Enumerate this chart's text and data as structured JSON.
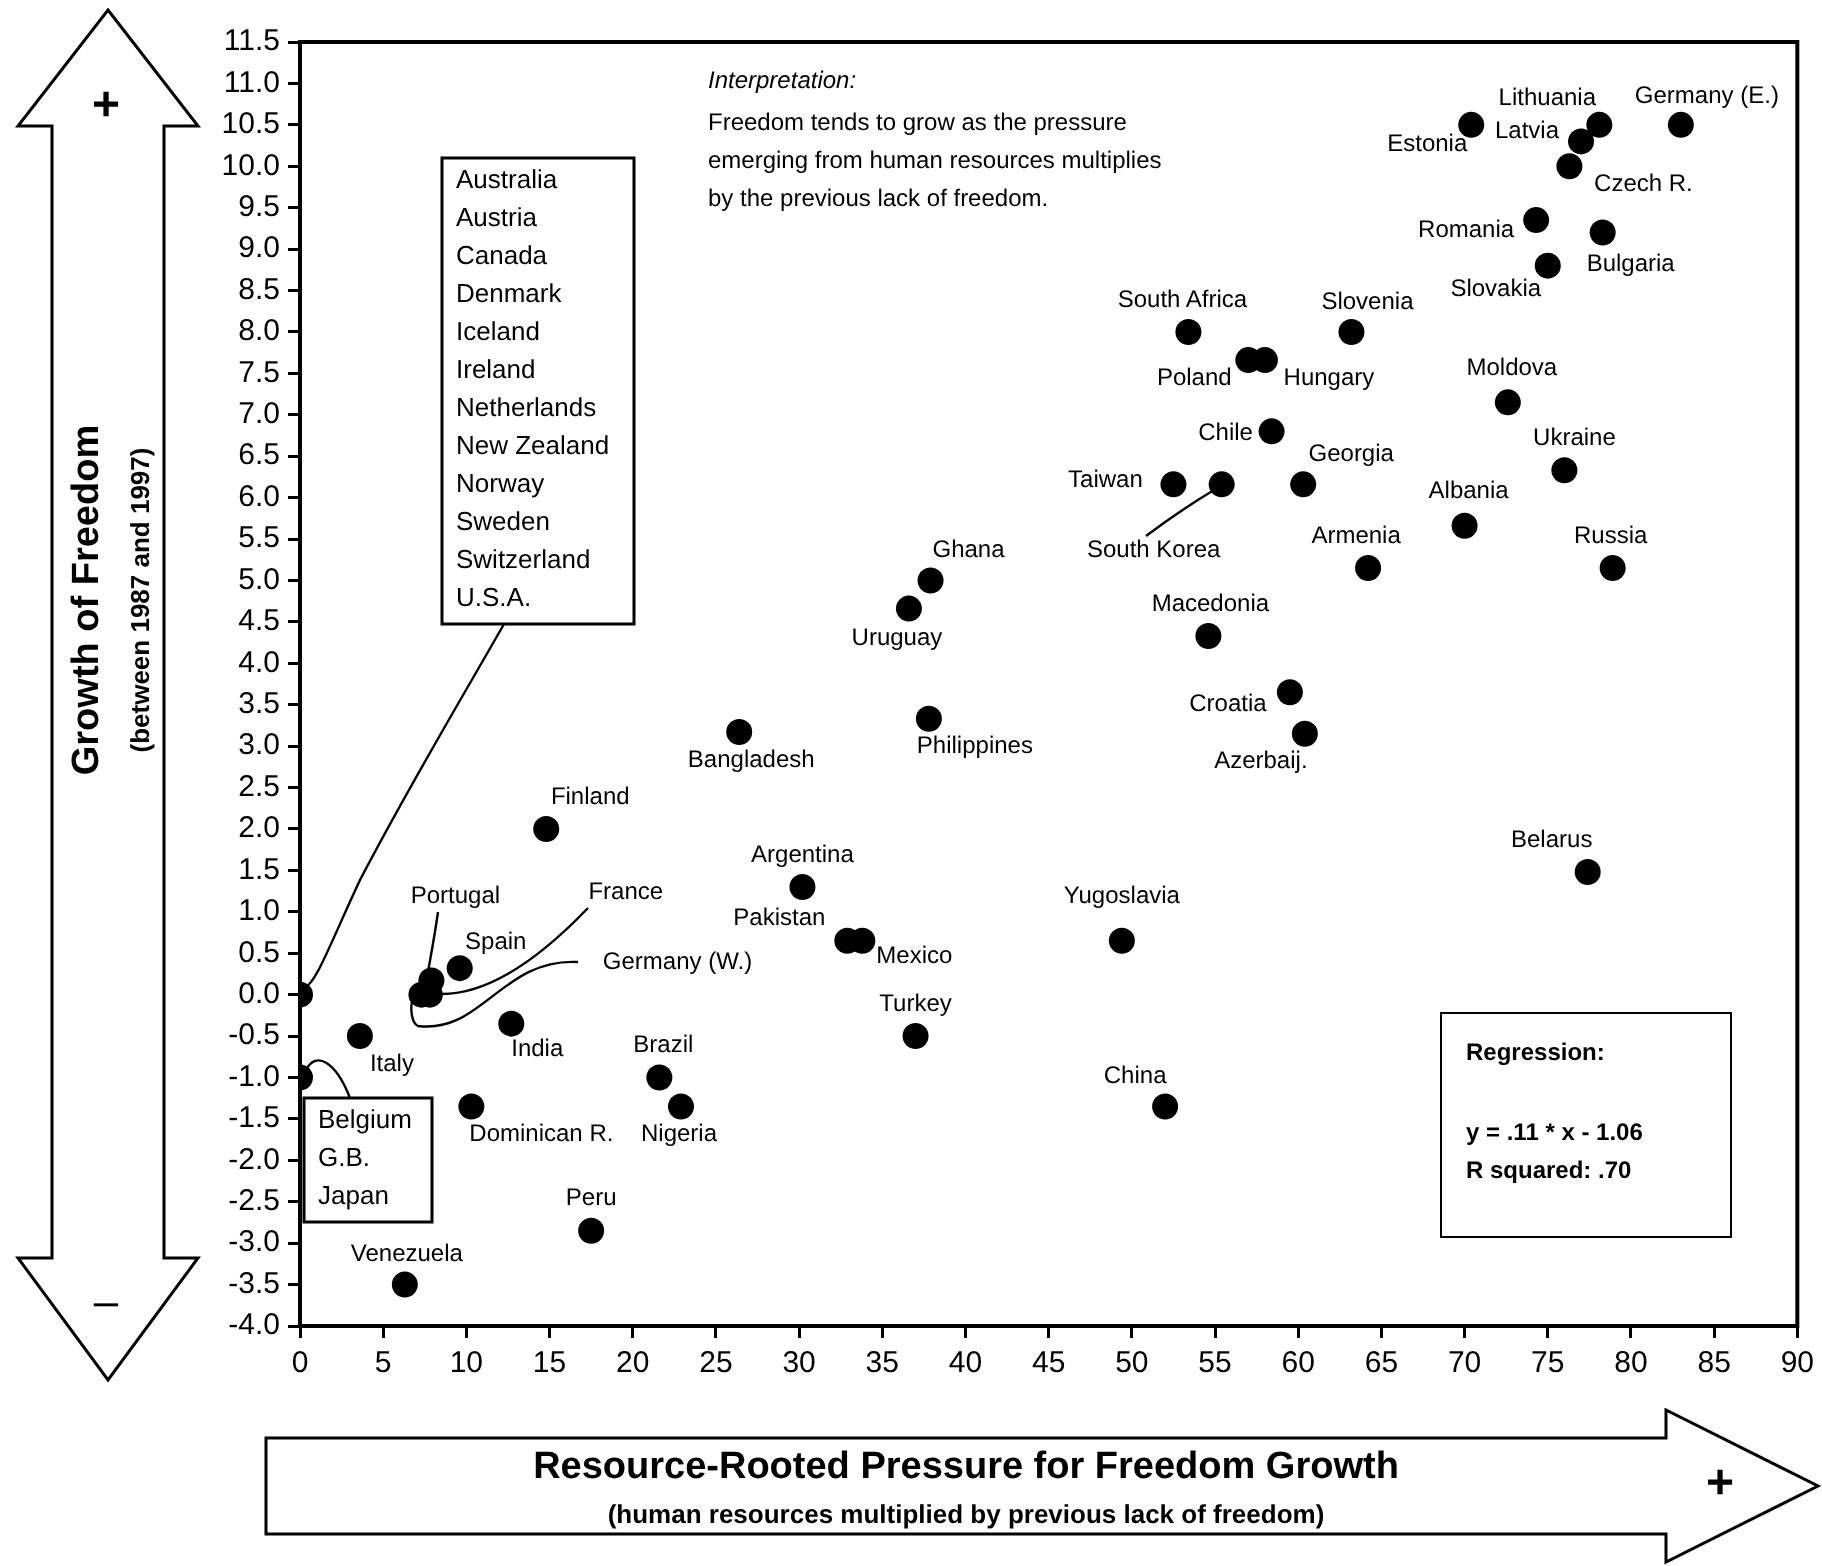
{
  "chart_data": {
    "type": "scatter",
    "xlabel": "Resource-Rooted Pressure for Freedom Growth",
    "ylabel": "Growth of Freedom",
    "marker": "circle",
    "legend": false,
    "xlim": [
      0,
      90
    ],
    "xticks": [
      0,
      5,
      10,
      15,
      20,
      25,
      30,
      35,
      40,
      45,
      50,
      55,
      60,
      65,
      70,
      75,
      80,
      85,
      90
    ],
    "ylim": [
      -4,
      11.5
    ],
    "yticks": [
      {
        "value": -4,
        "label": "-4.0"
      },
      -3.5,
      {
        "value": -3,
        "label": "-3.0"
      },
      -2.5,
      {
        "value": -2,
        "label": "-2.0"
      },
      -1.5,
      {
        "value": -1,
        "label": "-1.0"
      },
      -0.5,
      {
        "value": 0,
        "label": "0.0"
      },
      0.5,
      {
        "value": 1,
        "label": "1.0"
      },
      1.5,
      {
        "value": 2,
        "label": "2.0"
      },
      2.5,
      {
        "value": 3,
        "label": "3.0"
      },
      3.5,
      {
        "value": 4,
        "label": "4.0"
      },
      4.5,
      {
        "value": 5,
        "label": "5.0"
      },
      5.5,
      {
        "value": 6,
        "label": "6.0"
      },
      6.5,
      {
        "value": 7,
        "label": "7.0"
      },
      7.5,
      {
        "value": 8,
        "label": "8.0"
      },
      8.5,
      {
        "value": 9,
        "label": "9.0"
      },
      9.5,
      {
        "value": 10,
        "label": "10.0"
      },
      10.5,
      {
        "value": 11,
        "label": "11.0"
      },
      11.5
    ],
    "x": [
      0,
      0,
      14.8,
      7.9,
      9.6,
      7.8,
      7.3,
      3.6,
      12.7,
      10.3,
      21.6,
      22.9,
      17.5,
      6.3,
      26.4,
      30.2,
      32.9,
      33.8,
      37.0,
      36.6,
      37.9,
      37.8,
      49.4,
      52.0,
      53.4,
      57.0,
      58.0,
      58.4,
      52.5,
      55.4,
      60.3,
      54.6,
      59.5,
      60.4,
      63.2,
      64.2,
      70.0,
      72.6,
      76.0,
      78.9,
      77.4,
      70.4,
      78.1,
      77.0,
      83.0,
      76.3,
      74.3,
      78.3,
      75.0
    ],
    "series": [
      {
        "color": "#000000",
        "values": [
          0,
          -1,
          2.0,
          0.17,
          0.32,
          0.0,
          0.0,
          -0.5,
          -0.35,
          -1.35,
          -1.0,
          -1.35,
          -2.85,
          -3.5,
          3.17,
          1.3,
          0.65,
          0.65,
          -0.5,
          4.66,
          5.0,
          3.33,
          0.65,
          -1.35,
          8.0,
          7.66,
          7.66,
          6.8,
          6.16,
          6.16,
          6.16,
          4.33,
          3.65,
          3.15,
          8.0,
          5.15,
          5.66,
          7.15,
          6.33,
          5.15,
          1.48,
          10.5,
          10.5,
          10.3,
          10.5,
          10.0,
          9.35,
          9.2,
          8.8
        ]
      }
    ],
    "annotations": [
      "Australia",
      "Austria",
      "Canada",
      "Denmark",
      "Iceland",
      "Ireland",
      "Netherlands",
      "New Zealand",
      "Norway",
      "Sweden",
      "Switzerland",
      {
        "text": "U.S.A.",
        "x": 0,
        "y": 0
      },
      {
        "text": "Belgium",
        "x": 0,
        "y": -1
      },
      "G.B.",
      "Japan",
      {
        "text": "Finland",
        "x": 14.8,
        "y": 2.0
      },
      {
        "text": "Portugal",
        "x": 7.9,
        "y": 0.17
      },
      {
        "text": "Spain",
        "x": 9.6,
        "y": 0.32
      },
      {
        "text": "France",
        "x": 7.8,
        "y": 0.0
      },
      {
        "text": "Germany (W.)",
        "x": 7.3,
        "y": 0.0
      },
      {
        "text": "Italy",
        "x": 3.6,
        "y": -0.5
      },
      {
        "text": "India",
        "x": 12.7,
        "y": -0.35
      },
      {
        "text": "Dominican R.",
        "x": 10.3,
        "y": -1.35
      },
      {
        "text": "Brazil",
        "x": 21.6,
        "y": -1.0
      },
      {
        "text": "Nigeria",
        "x": 22.9,
        "y": -1.35
      },
      {
        "text": "Peru",
        "x": 17.5,
        "y": -2.85
      },
      {
        "text": "Venezuela",
        "x": 6.3,
        "y": -3.5
      },
      {
        "text": "Bangladesh",
        "x": 26.4,
        "y": 3.17
      },
      {
        "text": "Argentina",
        "x": 30.2,
        "y": 1.3
      },
      {
        "text": "Pakistan",
        "x": 32.9,
        "y": 0.65
      },
      {
        "text": "Mexico",
        "x": 33.8,
        "y": 0.65
      },
      {
        "text": "Turkey",
        "x": 37.0,
        "y": -0.5
      },
      {
        "text": "Uruguay",
        "x": 36.6,
        "y": 4.66
      },
      {
        "text": "Ghana",
        "x": 37.9,
        "y": 5.0
      },
      {
        "text": "Philippines",
        "x": 37.8,
        "y": 3.33
      },
      {
        "text": "Yugoslavia",
        "x": 49.4,
        "y": 0.65
      },
      {
        "text": "China",
        "x": 52.0,
        "y": -1.35
      },
      {
        "text": "South Africa",
        "x": 53.4,
        "y": 8.0
      },
      {
        "text": "Poland",
        "x": 57.0,
        "y": 7.66
      },
      {
        "text": "Hungary",
        "x": 58.0,
        "y": 7.66
      },
      {
        "text": "Chile",
        "x": 58.4,
        "y": 6.8
      },
      {
        "text": "Taiwan",
        "x": 52.5,
        "y": 6.16
      },
      {
        "text": "South Korea",
        "x": 55.4,
        "y": 6.16
      },
      {
        "text": "Georgia",
        "x": 60.3,
        "y": 6.16
      },
      {
        "text": "Macedonia",
        "x": 54.6,
        "y": 4.33
      },
      {
        "text": "Croatia",
        "x": 59.5,
        "y": 3.65
      },
      {
        "text": "Azerbaij.",
        "x": 60.4,
        "y": 3.15
      },
      {
        "text": "Slovenia",
        "x": 63.2,
        "y": 8.0
      },
      {
        "text": "Armenia",
        "x": 64.2,
        "y": 5.15
      },
      {
        "text": "Albania",
        "x": 70.0,
        "y": 5.66
      },
      {
        "text": "Moldova",
        "x": 72.6,
        "y": 7.15
      },
      {
        "text": "Ukraine",
        "x": 76.0,
        "y": 6.33
      },
      {
        "text": "Russia",
        "x": 78.9,
        "y": 5.15
      },
      {
        "text": "Belarus",
        "x": 77.4,
        "y": 1.48
      },
      {
        "text": "Estonia",
        "x": 70.4,
        "y": 10.5
      },
      {
        "text": "Lithuania",
        "x": 78.1,
        "y": 10.5
      },
      {
        "text": "Latvia",
        "x": 77.0,
        "y": 10.3
      },
      {
        "text": "Germany (E.)",
        "x": 83.0,
        "y": 10.5
      },
      {
        "text": "Czech R.",
        "x": 76.3,
        "y": 10.0
      },
      {
        "text": "Romania",
        "x": 74.3,
        "y": 9.35
      },
      {
        "text": "Bulgaria",
        "x": 78.3,
        "y": 9.2
      },
      {
        "text": "Slovakia",
        "x": 75.0,
        "y": 8.8
      },
      "Interpretation:",
      "Freedom tends to grow as the pressure\nemerging from human resources multiplies\nby the previous lack of freedom.",
      "Regression:",
      "y = .11 * x - 1.06\nR squared: .70",
      "(between 1987 and 1997)",
      "(human resources multiplied by previous lack of freedom)",
      "+",
      "–",
      "+"
    ]
  }
}
